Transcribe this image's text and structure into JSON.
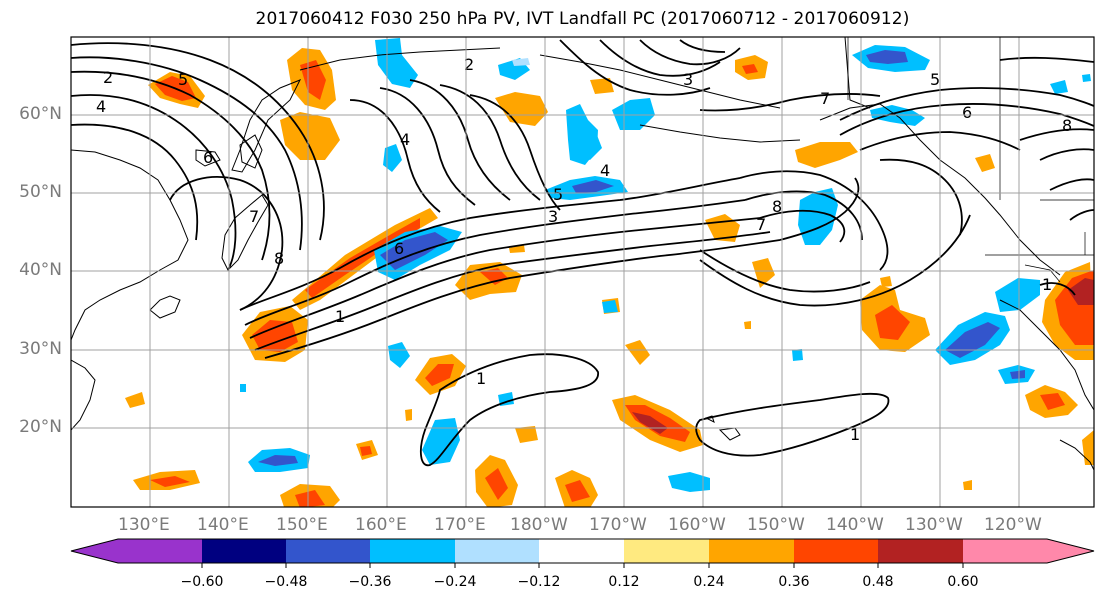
{
  "title": "2017060412 F030 250 hPa PV, IVT Landfall PC (2017060712 - 2017060912)",
  "lat_labels": [
    "60°N",
    "50°N",
    "40°N",
    "30°N",
    "20°N"
  ],
  "lon_labels": [
    "130°E",
    "140°E",
    "150°E",
    "160°E",
    "170°E",
    "180°W",
    "170°W",
    "160°W",
    "150°W",
    "140°W",
    "130°W",
    "120°W"
  ],
  "colorbar": {
    "tick_labels": [
      "−0.60",
      "−0.48",
      "−0.36",
      "−0.24",
      "−0.12",
      "0.12",
      "0.24",
      "0.36",
      "0.48",
      "0.60"
    ],
    "colors": [
      "#9933cc",
      "#000080",
      "#3355cc",
      "#00bfff",
      "#b0e0ff",
      "#ffffff",
      "#ffea80",
      "#ffa500",
      "#ff4500",
      "#b22222",
      "#ff88aa"
    ]
  },
  "contour_labels": [
    "2",
    "4",
    "5",
    "6",
    "7",
    "8",
    "2",
    "3",
    "4",
    "5",
    "6",
    "7",
    "8",
    "1",
    "1",
    "1",
    "1",
    "5",
    "6",
    "7",
    "8",
    "3",
    "4"
  ],
  "colors": {
    "contour": "#000000",
    "grid": "#a0a0a0",
    "tick_text": "#7a7a7a"
  }
}
